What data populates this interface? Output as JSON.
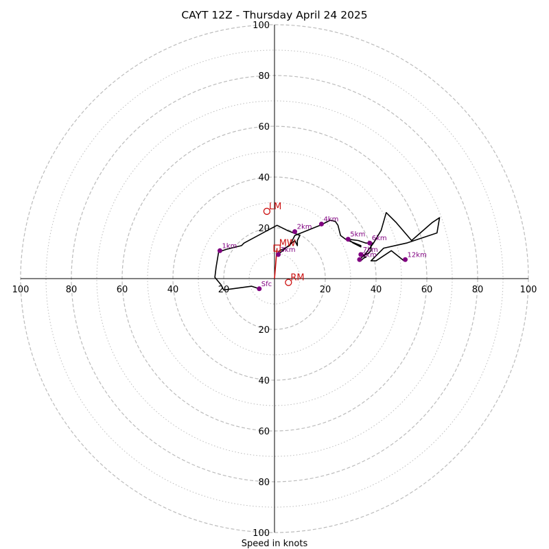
{
  "chart_data": {
    "type": "line",
    "title": "CAYT 12Z - Thursday April 24 2025",
    "xlabel": "Speed in knots",
    "max_speed": 100,
    "ring_major": [
      20,
      40,
      60,
      80,
      100
    ],
    "ring_minor": [
      10,
      30,
      50,
      70,
      90
    ],
    "tick_labels": [
      "20",
      "40",
      "60",
      "80",
      "100"
    ],
    "grid": true,
    "colors": {
      "profile": "#000000",
      "height_marker": "#800080",
      "motion": "#cc1111",
      "grid": "#bbbbbb"
    },
    "hodograph": [
      [
        -6,
        -4
      ],
      [
        -9,
        -3
      ],
      [
        -20,
        -4.5
      ],
      [
        -21,
        -2.5
      ],
      [
        -23.5,
        0.5
      ],
      [
        -23,
        4.5
      ],
      [
        -22,
        10.5
      ],
      [
        -19,
        11.5
      ],
      [
        -13,
        13
      ],
      [
        -12,
        14
      ],
      [
        1,
        21
      ],
      [
        5,
        19
      ],
      [
        10,
        17
      ],
      [
        9,
        15
      ],
      [
        9,
        13
      ],
      [
        8,
        15
      ],
      [
        2,
        10
      ],
      [
        2,
        9
      ],
      [
        1,
        9.5
      ],
      [
        1.5,
        10
      ],
      [
        2,
        11
      ],
      [
        3,
        11.5
      ],
      [
        6,
        13
      ],
      [
        8,
        17
      ],
      [
        18,
        21
      ],
      [
        22,
        23
      ],
      [
        24,
        22.5
      ],
      [
        25,
        21
      ],
      [
        26,
        17
      ],
      [
        28,
        15.5
      ],
      [
        29,
        15
      ],
      [
        34,
        13
      ],
      [
        34,
        12.5
      ],
      [
        31,
        14
      ],
      [
        29,
        15.5
      ],
      [
        33,
        15
      ],
      [
        36,
        14
      ],
      [
        37,
        14
      ],
      [
        39,
        14
      ],
      [
        38,
        13
      ],
      [
        38,
        11
      ],
      [
        37,
        10
      ],
      [
        35,
        9
      ],
      [
        36,
        8.5
      ],
      [
        35,
        8
      ],
      [
        34,
        7
      ],
      [
        33,
        7
      ],
      [
        36,
        10
      ],
      [
        39,
        14
      ],
      [
        42,
        19
      ],
      [
        44,
        26
      ],
      [
        48,
        22
      ],
      [
        54,
        15
      ],
      [
        62,
        22
      ],
      [
        65,
        24
      ],
      [
        64,
        18
      ],
      [
        52,
        14
      ],
      [
        43,
        12
      ],
      [
        38,
        7
      ],
      [
        40,
        7
      ],
      [
        46,
        11
      ],
      [
        51,
        7
      ]
    ],
    "height_markers": [
      {
        "label": "Sfc",
        "u": -6,
        "v": -4
      },
      {
        "label": "1km",
        "u": -21.5,
        "v": 11
      },
      {
        "label": "2km",
        "u": 8,
        "v": 18.5
      },
      {
        "label": "3km",
        "u": 1.5,
        "v": 9.5
      },
      {
        "label": "4km",
        "u": 18.5,
        "v": 21.5
      },
      {
        "label": "5km",
        "u": 29,
        "v": 15.5
      },
      {
        "label": "6km",
        "u": 37.5,
        "v": 14
      },
      {
        "label": "7km",
        "u": 34,
        "v": 9.5
      },
      {
        "label": "8km",
        "u": 33.5,
        "v": 7.5
      },
      {
        "label": "12km",
        "u": 51.5,
        "v": 7.5
      }
    ],
    "storm_motion": [
      {
        "label": "LM",
        "u": -3,
        "v": 26.5,
        "shape": "circle"
      },
      {
        "label": "MW",
        "u": 1,
        "v": 12,
        "shape": "square"
      },
      {
        "label": "RM",
        "u": 5.5,
        "v": -1.5,
        "shape": "circle"
      }
    ]
  }
}
